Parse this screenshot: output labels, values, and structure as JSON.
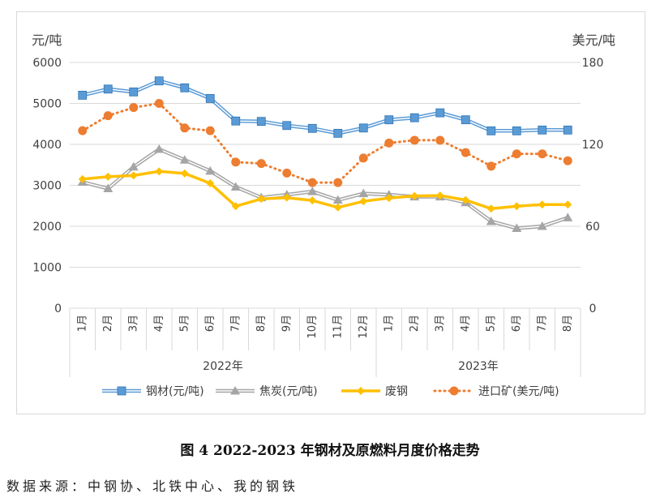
{
  "chart_data": {
    "type": "line",
    "left_axis_label": "元/吨",
    "right_axis_label": "美元/吨",
    "left_ylim": [
      0,
      6000
    ],
    "left_ticks": [
      "0",
      "1000",
      "2000",
      "3000",
      "4000",
      "5000",
      "6000"
    ],
    "right_ylim": [
      0,
      180
    ],
    "right_ticks": [
      "0",
      "60",
      "120",
      "180"
    ],
    "months": [
      "1月",
      "2月",
      "3月",
      "4月",
      "5月",
      "6月",
      "7月",
      "8月",
      "9月",
      "10月",
      "11月",
      "12月",
      "1月",
      "2月",
      "3月",
      "4月",
      "5月",
      "6月",
      "7月",
      "8月"
    ],
    "year_groups": [
      {
        "label": "2022年",
        "count": 12
      },
      {
        "label": "2023年",
        "count": 8
      }
    ],
    "grid": "horizontal",
    "legend_position": "bottom",
    "series": [
      {
        "name": "钢材(元/吨)",
        "axis": "left",
        "color": "#5b9bd5",
        "marker": "square",
        "values": [
          5200,
          5350,
          5280,
          5550,
          5380,
          5120,
          4570,
          4560,
          4460,
          4390,
          4270,
          4400,
          4600,
          4650,
          4770,
          4600,
          4330,
          4330,
          4350,
          4350
        ]
      },
      {
        "name": "焦炭(元/吨)",
        "axis": "left",
        "color": "#a5a5a5",
        "marker": "triangle",
        "values": [
          3080,
          2920,
          3450,
          3880,
          3620,
          3350,
          2960,
          2700,
          2770,
          2850,
          2640,
          2800,
          2770,
          2720,
          2720,
          2580,
          2120,
          1950,
          2000,
          2210
        ]
      },
      {
        "name": "废钢",
        "axis": "left",
        "color": "#ffc000",
        "marker": "diamond",
        "values": [
          3150,
          3210,
          3240,
          3340,
          3290,
          3050,
          2490,
          2670,
          2700,
          2630,
          2460,
          2610,
          2690,
          2740,
          2750,
          2640,
          2430,
          2490,
          2530,
          2530
        ]
      },
      {
        "name": "进口矿(美元/吨)",
        "axis": "right",
        "color": "#ed7d31",
        "marker": "circle",
        "values": [
          130,
          141,
          147,
          150,
          132,
          130,
          107,
          106,
          99,
          92,
          92,
          110,
          121,
          123,
          123,
          114,
          104,
          113,
          113,
          108
        ]
      }
    ]
  },
  "figure_caption": "图 4 2022-2023 年钢材及原燃料月度价格走势",
  "data_source": "数据来源：中钢协、北铁中心、我的钢铁"
}
